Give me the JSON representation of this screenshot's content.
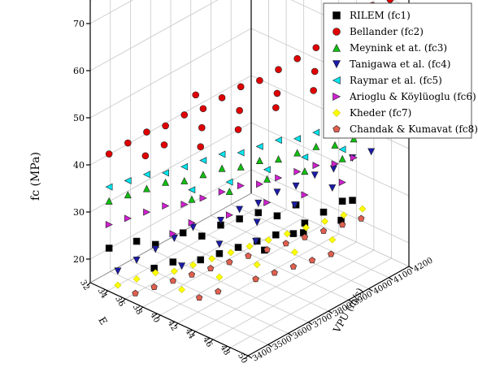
{
  "chart_data": {
    "type": "scatter",
    "projection": "3d",
    "title": "",
    "zlabel": "fc (MPa)",
    "xlabel": "VPU (m/s)",
    "ylabel": "E",
    "zlim": [
      15,
      75
    ],
    "xlim": [
      3400,
      4200
    ],
    "ylim": [
      32,
      50
    ],
    "z_ticks": [
      20,
      30,
      40,
      50,
      60,
      70
    ],
    "x_ticks": [
      3400,
      3500,
      3600,
      3700,
      3800,
      3900,
      4000,
      4100,
      4200
    ],
    "y_ticks": [
      32,
      34,
      36,
      38,
      40,
      42,
      44,
      46,
      48,
      50
    ],
    "x_tick_labels": [
      "3400",
      "3500",
      "3600",
      "3700",
      "3800",
      "3900",
      "4000",
      "4100",
      "4200"
    ],
    "y_tick_labels": [
      "32",
      "34",
      "36",
      "38",
      "40",
      "42",
      "44",
      "46",
      "48",
      "50"
    ],
    "z_tick_labels": [
      "20",
      "30",
      "40",
      "50",
      "60",
      "70"
    ],
    "grid": true,
    "legend_position": "top-right",
    "series": [
      {
        "name": "RILEM (fc1)",
        "color": "#000000",
        "marker": "square",
        "points": [
          [
            3450,
            33,
            22
          ],
          [
            3500,
            35,
            24
          ],
          [
            3550,
            36,
            23
          ],
          [
            3600,
            38,
            26
          ],
          [
            3650,
            39,
            25
          ],
          [
            3700,
            40,
            27
          ],
          [
            3750,
            41,
            28
          ],
          [
            3800,
            42,
            29
          ],
          [
            3850,
            43,
            28
          ],
          [
            3900,
            44,
            30
          ],
          [
            3950,
            46,
            29
          ],
          [
            4000,
            47,
            31
          ],
          [
            3600,
            40,
            22
          ],
          [
            3700,
            42,
            24
          ],
          [
            3800,
            44,
            26
          ],
          [
            3900,
            45,
            27
          ],
          [
            3550,
            38,
            21
          ],
          [
            3650,
            41,
            23
          ],
          [
            3750,
            43,
            25
          ],
          [
            3850,
            46,
            27
          ],
          [
            3950,
            48,
            29
          ],
          [
            4050,
            47,
            30
          ],
          [
            3500,
            37,
            20
          ],
          [
            3700,
            45,
            26
          ],
          [
            3800,
            46,
            28
          ]
        ]
      },
      {
        "name": "Bellander (fc2)",
        "color": "#e00000",
        "marker": "circle",
        "points": [
          [
            3450,
            33,
            42
          ],
          [
            3500,
            34,
            44
          ],
          [
            3550,
            35,
            46
          ],
          [
            3600,
            36,
            47
          ],
          [
            3650,
            37,
            49
          ],
          [
            3700,
            38,
            50
          ],
          [
            3750,
            39,
            52
          ],
          [
            3800,
            40,
            54
          ],
          [
            3850,
            41,
            55
          ],
          [
            3900,
            42,
            57
          ],
          [
            3950,
            43,
            59
          ],
          [
            4000,
            44,
            61
          ],
          [
            4050,
            45,
            63
          ],
          [
            4100,
            46,
            66
          ],
          [
            4150,
            47,
            69
          ],
          [
            4150,
            49,
            72
          ],
          [
            3550,
            37,
            45
          ],
          [
            3650,
            39,
            48
          ],
          [
            3750,
            41,
            51
          ],
          [
            3850,
            43,
            54
          ],
          [
            3950,
            45,
            58
          ],
          [
            4050,
            47,
            62
          ],
          [
            3600,
            40,
            46
          ],
          [
            3700,
            42,
            49
          ],
          [
            3800,
            44,
            53
          ],
          [
            3900,
            46,
            56
          ],
          [
            4000,
            48,
            60
          ],
          [
            3500,
            36,
            43
          ],
          [
            4100,
            48,
            67
          ],
          [
            3750,
            36,
            50
          ]
        ]
      },
      {
        "name": "Meynink et at. (fc3)",
        "color": "#10c010",
        "marker": "triangle-up",
        "points": [
          [
            3450,
            33,
            32
          ],
          [
            3500,
            34,
            33
          ],
          [
            3550,
            35,
            34
          ],
          [
            3600,
            36,
            35
          ],
          [
            3650,
            37,
            35
          ],
          [
            3700,
            38,
            36
          ],
          [
            3750,
            39,
            37
          ],
          [
            3800,
            40,
            37
          ],
          [
            3850,
            41,
            38
          ],
          [
            3900,
            42,
            38
          ],
          [
            3950,
            43,
            39
          ],
          [
            4000,
            44,
            40
          ],
          [
            4050,
            45,
            40
          ],
          [
            4100,
            46,
            41
          ],
          [
            4150,
            47,
            42
          ],
          [
            3600,
            39,
            34
          ],
          [
            3800,
            43,
            37
          ],
          [
            4000,
            47,
            40
          ],
          [
            3700,
            41,
            35
          ],
          [
            3900,
            45,
            38
          ]
        ]
      },
      {
        "name": "Tanigawa et al. (fc4)",
        "color": "#1a1aa8",
        "marker": "triangle-down",
        "points": [
          [
            3450,
            34,
            18
          ],
          [
            3500,
            35,
            20
          ],
          [
            3550,
            36,
            22
          ],
          [
            3600,
            37,
            24
          ],
          [
            3650,
            38,
            26
          ],
          [
            3700,
            40,
            28
          ],
          [
            3750,
            41,
            30
          ],
          [
            3800,
            42,
            31
          ],
          [
            3850,
            43,
            33
          ],
          [
            3900,
            44,
            34
          ],
          [
            3950,
            45,
            36
          ],
          [
            4000,
            46,
            37
          ],
          [
            4050,
            47,
            39
          ],
          [
            4100,
            48,
            40
          ],
          [
            3650,
            41,
            25
          ],
          [
            3750,
            43,
            29
          ],
          [
            3850,
            45,
            32
          ],
          [
            3950,
            47,
            35
          ],
          [
            3550,
            39,
            21
          ],
          [
            3700,
            44,
            27
          ]
        ]
      },
      {
        "name": "Raymar et al. (fc5)",
        "color": "#00e5ee",
        "marker": "triangle-left",
        "points": [
          [
            3450,
            33,
            35
          ],
          [
            3500,
            34,
            36
          ],
          [
            3550,
            35,
            37
          ],
          [
            3600,
            36,
            37
          ],
          [
            3650,
            37,
            38
          ],
          [
            3700,
            38,
            39
          ],
          [
            3750,
            39,
            40
          ],
          [
            3800,
            40,
            40
          ],
          [
            3850,
            41,
            41
          ],
          [
            3900,
            42,
            42
          ],
          [
            3950,
            43,
            42
          ],
          [
            4000,
            44,
            43
          ],
          [
            4050,
            45,
            44
          ],
          [
            4100,
            46,
            45
          ],
          [
            4150,
            47,
            45
          ],
          [
            3600,
            39,
            36
          ],
          [
            3800,
            43,
            39
          ],
          [
            4000,
            47,
            42
          ],
          [
            3700,
            41,
            37
          ],
          [
            3900,
            45,
            41
          ]
        ]
      },
      {
        "name": "Arioglu & Köylüoglu (fc6)",
        "color": "#d020d0",
        "marker": "triangle-right",
        "points": [
          [
            3450,
            33,
            27
          ],
          [
            3500,
            34,
            28
          ],
          [
            3550,
            35,
            29
          ],
          [
            3600,
            36,
            30
          ],
          [
            3650,
            37,
            30
          ],
          [
            3700,
            38,
            31
          ],
          [
            3750,
            39,
            32
          ],
          [
            3800,
            40,
            33
          ],
          [
            3850,
            41,
            33
          ],
          [
            3900,
            42,
            34
          ],
          [
            3950,
            43,
            35
          ],
          [
            4000,
            44,
            36
          ],
          [
            4050,
            45,
            36
          ],
          [
            4100,
            46,
            37
          ],
          [
            3600,
            39,
            29
          ],
          [
            3800,
            43,
            32
          ],
          [
            4000,
            47,
            35
          ],
          [
            3700,
            41,
            30
          ],
          [
            3900,
            45,
            33
          ],
          [
            3550,
            38,
            27
          ]
        ]
      },
      {
        "name": "Kheder (fc7)",
        "color": "#ffff00",
        "marker": "diamond",
        "points": [
          [
            3450,
            34,
            15
          ],
          [
            3500,
            35,
            16
          ],
          [
            3550,
            36,
            17
          ],
          [
            3600,
            37,
            17
          ],
          [
            3650,
            38,
            18
          ],
          [
            3700,
            39,
            19
          ],
          [
            3750,
            40,
            20
          ],
          [
            3800,
            41,
            21
          ],
          [
            3850,
            42,
            22
          ],
          [
            3900,
            43,
            23
          ],
          [
            3950,
            44,
            24
          ],
          [
            4000,
            45,
            25
          ],
          [
            4050,
            46,
            26
          ],
          [
            4100,
            47,
            27
          ],
          [
            3650,
            41,
            18
          ],
          [
            3750,
            43,
            20
          ],
          [
            3850,
            45,
            22
          ],
          [
            3950,
            47,
            24
          ],
          [
            3550,
            39,
            16
          ],
          [
            3700,
            44,
            19
          ]
        ]
      },
      {
        "name": "Chandak & Kumavat (fc8)",
        "color": "#e06050",
        "marker": "pentagon",
        "points": [
          [
            3450,
            36,
            15
          ],
          [
            3500,
            37,
            16
          ],
          [
            3550,
            38,
            17
          ],
          [
            3600,
            39,
            18
          ],
          [
            3650,
            40,
            19
          ],
          [
            3700,
            41,
            20
          ],
          [
            3750,
            42,
            21
          ],
          [
            3800,
            43,
            22
          ],
          [
            3850,
            44,
            23
          ],
          [
            3900,
            45,
            24
          ],
          [
            3950,
            46,
            25
          ],
          [
            4000,
            47,
            26
          ],
          [
            4050,
            48,
            27
          ],
          [
            3600,
            42,
            17
          ],
          [
            3700,
            44,
            19
          ],
          [
            3800,
            46,
            21
          ],
          [
            3900,
            48,
            23
          ],
          [
            3550,
            41,
            16
          ],
          [
            3750,
            45,
            20
          ],
          [
            3850,
            47,
            22
          ]
        ]
      }
    ]
  }
}
